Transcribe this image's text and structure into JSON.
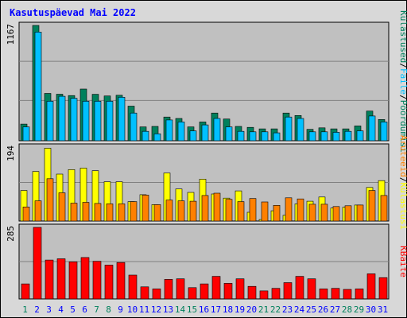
{
  "title": "Kasutuspäevad Mai 2022",
  "colors": {
    "background": "#d8d8d8",
    "panel": "#c0c0c0",
    "title": "#0000ff",
    "visits": "#00805c",
    "pages": "#00c0ff",
    "files": "#00c0ff",
    "hits": "#ffff00",
    "sites": "#ff8000",
    "kbytes": "#ff0000",
    "weekend_day": "#00805c",
    "weekday": "#0000ff"
  },
  "chart_data": [
    {
      "type": "bar",
      "panel": "top",
      "ymax_label": "1167",
      "right_label_parts": [
        "Külastused",
        "/",
        "Faile",
        "/",
        "Pöördumisi"
      ],
      "categories": [
        "1",
        "2",
        "3",
        "4",
        "5",
        "6",
        "7",
        "8",
        "9",
        "10",
        "11",
        "12",
        "13",
        "14",
        "15",
        "16",
        "17",
        "18",
        "19",
        "20",
        "21",
        "22",
        "23",
        "24",
        "25",
        "26",
        "27",
        "28",
        "29",
        "30",
        "31"
      ],
      "weekend": [
        1,
        7,
        8,
        14,
        15,
        21,
        22,
        28,
        29
      ],
      "ylim": [
        0,
        1167
      ],
      "series": [
        {
          "name": "Pöördumisi",
          "values": [
            168,
            1167,
            479,
            471,
            457,
            523,
            470,
            453,
            460,
            350,
            140,
            145,
            240,
            225,
            140,
            190,
            280,
            220,
            145,
            135,
            120,
            120,
            280,
            255,
            115,
            130,
            120,
            120,
            150,
            300,
            215
          ]
        },
        {
          "name": "Faile",
          "values": [
            140,
            1100,
            400,
            450,
            430,
            400,
            400,
            400,
            440,
            280,
            95,
            70,
            210,
            190,
            100,
            160,
            225,
            140,
            95,
            90,
            90,
            80,
            240,
            225,
            90,
            90,
            85,
            95,
            100,
            250,
            190
          ]
        }
      ]
    },
    {
      "type": "bar",
      "panel": "middle",
      "ymax_label": "194",
      "right_label_parts": [
        "Aruteeid",
        "/",
        "Külastusi"
      ],
      "categories": [
        "1",
        "2",
        "3",
        "4",
        "5",
        "6",
        "7",
        "8",
        "9",
        "10",
        "11",
        "12",
        "13",
        "14",
        "15",
        "16",
        "17",
        "18",
        "19",
        "20",
        "21",
        "22",
        "23",
        "24",
        "25",
        "26",
        "27",
        "28",
        "29",
        "30",
        "31"
      ],
      "ylim": [
        0,
        194
      ],
      "series": [
        {
          "name": "Külastusi",
          "values": [
            80,
            130,
            191,
            123,
            135,
            139,
            132,
            103,
            103,
            51,
            69,
            43,
            126,
            84,
            75,
            110,
            71,
            60,
            79,
            23,
            4,
            27,
            15,
            45,
            52,
            63,
            34,
            36,
            42,
            88,
            106
          ]
        },
        {
          "name": "Aruteeid",
          "values": [
            37,
            53,
            111,
            74,
            47,
            49,
            46,
            45,
            45,
            51,
            68,
            43,
            55,
            53,
            52,
            67,
            73,
            57,
            51,
            59,
            50,
            41,
            61,
            58,
            44,
            44,
            38,
            40,
            42,
            80,
            67
          ]
        }
      ]
    },
    {
      "type": "bar",
      "panel": "bottom",
      "ymax_label": "285",
      "right_label_parts": [
        "KBaite"
      ],
      "categories": [
        "1",
        "2",
        "3",
        "4",
        "5",
        "6",
        "7",
        "8",
        "9",
        "10",
        "11",
        "12",
        "13",
        "14",
        "15",
        "16",
        "17",
        "18",
        "19",
        "20",
        "21",
        "22",
        "23",
        "24",
        "25",
        "26",
        "27",
        "28",
        "29",
        "30",
        "31"
      ],
      "ylim": [
        0,
        285
      ],
      "series": [
        {
          "name": "KBaite",
          "values": [
            60,
            285,
            155,
            160,
            148,
            165,
            150,
            135,
            145,
            95,
            48,
            40,
            78,
            80,
            45,
            60,
            90,
            62,
            80,
            50,
            32,
            42,
            65,
            90,
            80,
            40,
            42,
            38,
            40,
            100,
            85
          ]
        }
      ]
    }
  ]
}
